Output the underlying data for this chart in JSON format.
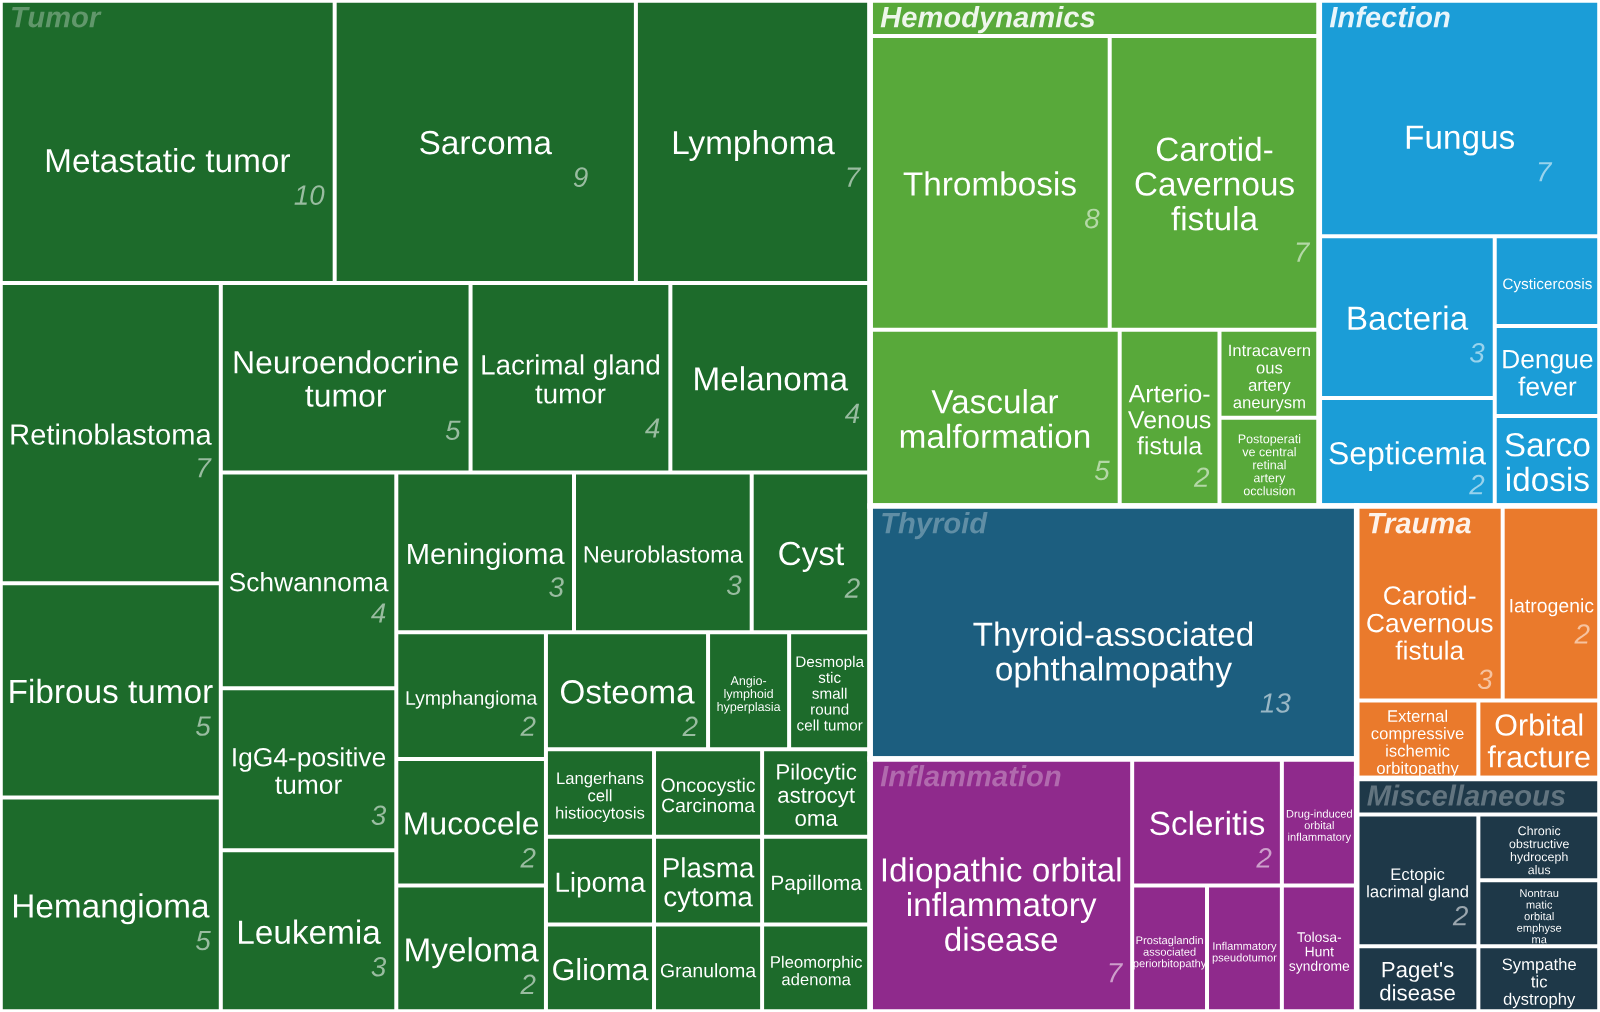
{
  "chart_data": {
    "type": "other",
    "categories": [
      "Metastatic tumor",
      "Sarcoma",
      "Lymphoma",
      "Retinoblastoma",
      "Fibrous tumor",
      "Hemangioma",
      "Neuroendocrine\ntumor",
      "Lacrimal gland\ntumor",
      "Melanoma",
      "Schwannoma",
      "IgG4-positive\ntumor",
      "Leukemia",
      "Meningioma",
      "Neuroblastoma",
      "Cyst",
      "Lymphangioma",
      "Mucocele",
      "Myeloma",
      "Osteoma",
      "Angio-\nlymphoid\nhyperplasia",
      "Desmopla\nstic\nsmall\nround\ncell tumor",
      "Langerhans\ncell\nhistiocytosis",
      "Lipoma",
      "Glioma",
      "Oncocystic\nCarcinoma",
      "Pilocytic\nastrocyt\noma",
      "Plasma\ncytoma",
      "Granuloma",
      "Papilloma",
      "Pleomorphic\nadenoma",
      "Thrombosis",
      "Carotid-\nCavernous\nfistula",
      "Vascular\nmalformation",
      "Arterio-\nVenous\nfistula",
      "Intracavern\nous\nartery\naneurysm",
      "Postoperati\nve central\nretinal\nartery\nocclusion",
      "Fungus",
      "Bacteria",
      "Septicemia",
      "Cysticercosis",
      "Dengue\nfever",
      "Sarco\nidosis",
      "Thyroid-associated\nophthalmopathy",
      "Idiopathic orbital\ninflammatory\ndisease",
      "Scleritis",
      "Drug-induced\norbital\ninflammatory",
      "Prostaglandin\nassociated\nperiorbitopathy",
      "Inflammatory\npseudotumor",
      "Tolosa-\nHunt\nsyndrome",
      "Carotid-\nCavernous\nfistula",
      "Iatrogenic",
      "External\ncompressive\nischemic\norbitopathy",
      "Orbital\nfracture",
      "Ectopic\nlacrimal gland",
      "Paget's\ndisease",
      "Chronic\nobstructive\nhydroceph\nalus",
      "Nontrau\nmatic\norbital\nemphyse\nma",
      "Sympathe\ntic\ndystrophy"
    ],
    "colors": [
      "#1d6b2b",
      "#1d6b2b",
      "#1d6b2b",
      "#1d6b2b",
      "#1d6b2b",
      "#1d6b2b",
      "#1d6b2b",
      "#1d6b2b",
      "#1d6b2b",
      "#1d6b2b",
      "#1d6b2b",
      "#1d6b2b",
      "#1d6b2b",
      "#1d6b2b",
      "#1d6b2b",
      "#1d6b2b",
      "#1d6b2b",
      "#1d6b2b",
      "#1d6b2b",
      "#1d6b2b",
      "#1d6b2b",
      "#1d6b2b",
      "#1d6b2b",
      "#1d6b2b",
      "#1d6b2b",
      "#1d6b2b",
      "#1d6b2b",
      "#1d6b2b",
      "#1d6b2b",
      "#1d6b2b",
      "#58a93a",
      "#58a93a",
      "#58a93a",
      "#58a93a",
      "#58a93a",
      "#58a93a",
      "#1b9dd7",
      "#1b9dd7",
      "#1b9dd7",
      "#1b9dd7",
      "#1b9dd7",
      "#1b9dd7",
      "#1c5e7f",
      "#8f2a8c",
      "#8f2a8c",
      "#8f2a8c",
      "#8f2a8c",
      "#8f2a8c",
      "#8f2a8c",
      "#ea7a2c",
      "#ea7a2c",
      "#ea7a2c",
      "#ea7a2c",
      "#1e3848",
      "#1e3848",
      "#1e3848",
      "#1e3848",
      "#1e3848"
    ],
    "data_labels": true,
    "series": [
      {
        "name": "Tumor",
        "color": "#1d6b2b",
        "values": [
          10,
          9,
          7,
          7,
          5,
          5,
          5,
          4,
          4,
          4,
          3,
          3,
          3,
          3,
          2,
          2,
          2,
          2,
          2,
          null,
          null,
          null,
          null,
          null,
          null,
          null,
          null,
          null,
          null,
          null,
          null,
          null,
          null,
          null,
          null,
          null,
          null,
          null,
          null,
          null,
          null,
          null,
          null,
          null,
          null,
          null,
          null,
          null,
          null,
          null,
          null,
          null,
          null,
          null,
          null,
          null,
          null,
          null
        ]
      },
      {
        "name": "Hemodynamics",
        "color": "#58a93a",
        "values": [
          null,
          null,
          null,
          null,
          null,
          null,
          null,
          null,
          null,
          null,
          null,
          null,
          null,
          null,
          null,
          null,
          null,
          null,
          null,
          null,
          null,
          null,
          null,
          null,
          null,
          null,
          null,
          null,
          null,
          null,
          8,
          7,
          5,
          2,
          null,
          null,
          null,
          null,
          null,
          null,
          null,
          null,
          null,
          null,
          null,
          null,
          null,
          null,
          null,
          null,
          null,
          null,
          null,
          null,
          null,
          null,
          null,
          null
        ]
      },
      {
        "name": "Infection",
        "color": "#1b9dd7",
        "values": [
          null,
          null,
          null,
          null,
          null,
          null,
          null,
          null,
          null,
          null,
          null,
          null,
          null,
          null,
          null,
          null,
          null,
          null,
          null,
          null,
          null,
          null,
          null,
          null,
          null,
          null,
          null,
          null,
          null,
          null,
          null,
          null,
          null,
          null,
          null,
          null,
          7,
          3,
          2,
          null,
          null,
          null,
          null,
          null,
          null,
          null,
          null,
          null,
          null,
          null,
          null,
          null,
          null,
          null,
          null,
          null,
          null,
          null
        ]
      },
      {
        "name": "Thyroid",
        "color": "#1c5e7f",
        "values": [
          null,
          null,
          null,
          null,
          null,
          null,
          null,
          null,
          null,
          null,
          null,
          null,
          null,
          null,
          null,
          null,
          null,
          null,
          null,
          null,
          null,
          null,
          null,
          null,
          null,
          null,
          null,
          null,
          null,
          null,
          null,
          null,
          null,
          null,
          null,
          null,
          null,
          null,
          null,
          null,
          null,
          null,
          13,
          null,
          null,
          null,
          null,
          null,
          null,
          null,
          null,
          null,
          null,
          null,
          null,
          null,
          null,
          null
        ]
      },
      {
        "name": "Inflammation",
        "color": "#8f2a8c",
        "values": [
          null,
          null,
          null,
          null,
          null,
          null,
          null,
          null,
          null,
          null,
          null,
          null,
          null,
          null,
          null,
          null,
          null,
          null,
          null,
          null,
          null,
          null,
          null,
          null,
          null,
          null,
          null,
          null,
          null,
          null,
          null,
          null,
          null,
          null,
          null,
          null,
          null,
          null,
          null,
          null,
          null,
          null,
          null,
          7,
          2,
          null,
          null,
          null,
          null,
          null,
          null,
          null,
          null,
          null,
          null,
          null,
          null,
          null
        ]
      },
      {
        "name": "Trauma",
        "color": "#ea7a2c",
        "values": [
          null,
          null,
          null,
          null,
          null,
          null,
          null,
          null,
          null,
          null,
          null,
          null,
          null,
          null,
          null,
          null,
          null,
          null,
          null,
          null,
          null,
          null,
          null,
          null,
          null,
          null,
          null,
          null,
          null,
          null,
          null,
          null,
          null,
          null,
          null,
          null,
          null,
          null,
          null,
          null,
          null,
          null,
          null,
          null,
          null,
          null,
          null,
          null,
          null,
          3,
          2,
          null,
          null,
          null,
          null,
          null,
          null,
          null
        ]
      },
      {
        "name": "Miscellaneous",
        "color": "#1e3848",
        "values": [
          null,
          null,
          null,
          null,
          null,
          null,
          null,
          null,
          null,
          null,
          null,
          null,
          null,
          null,
          null,
          null,
          null,
          null,
          null,
          null,
          null,
          null,
          null,
          null,
          null,
          null,
          null,
          null,
          null,
          null,
          null,
          null,
          null,
          null,
          null,
          null,
          null,
          null,
          null,
          null,
          null,
          null,
          null,
          null,
          null,
          null,
          null,
          null,
          null,
          null,
          null,
          null,
          null,
          2,
          null,
          null,
          null,
          null
        ]
      }
    ]
  }
}
